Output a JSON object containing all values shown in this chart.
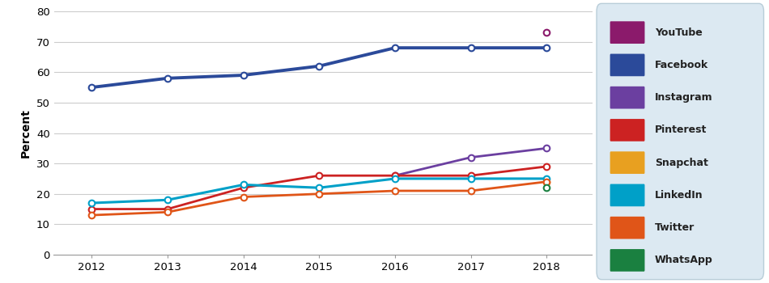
{
  "years": [
    2012,
    2013,
    2014,
    2015,
    2016,
    2017,
    2018
  ],
  "full_series": {
    "YouTube": [
      null,
      null,
      null,
      null,
      null,
      null,
      73
    ],
    "Facebook": [
      55,
      58,
      59,
      62,
      68,
      68,
      68
    ],
    "Instagram": [
      null,
      null,
      null,
      null,
      26,
      32,
      35
    ],
    "Pinterest": [
      15,
      15,
      22,
      26,
      26,
      26,
      29
    ],
    "Snapchat": [
      null,
      null,
      null,
      null,
      null,
      null,
      24
    ],
    "LinkedIn": [
      17,
      18,
      23,
      22,
      25,
      25,
      25
    ],
    "Twitter": [
      13,
      14,
      19,
      20,
      21,
      21,
      24
    ],
    "WhatsApp": [
      null,
      null,
      null,
      null,
      null,
      null,
      22
    ]
  },
  "line_colors": {
    "YouTube": "#8B1A6B",
    "Facebook": "#2B4A9A",
    "Instagram": "#6B3FA0",
    "Pinterest": "#CC2222",
    "Snapchat": "#E8A020",
    "LinkedIn": "#00A0C8",
    "Twitter": "#E05518",
    "WhatsApp": "#1A8040"
  },
  "line_widths": {
    "YouTube": 1.8,
    "Facebook": 2.8,
    "Instagram": 2.0,
    "Pinterest": 2.0,
    "Snapchat": 2.0,
    "LinkedIn": 2.2,
    "Twitter": 2.0,
    "WhatsApp": 2.0
  },
  "ylabel": "Percent",
  "ylim": [
    0,
    80
  ],
  "yticks": [
    0,
    10,
    20,
    30,
    40,
    50,
    60,
    70,
    80
  ],
  "xlim_lo": 2011.5,
  "xlim_hi": 2018.6,
  "xticks": [
    2012,
    2013,
    2014,
    2015,
    2016,
    2017,
    2018
  ],
  "legend_order": [
    "YouTube",
    "Facebook",
    "Instagram",
    "Pinterest",
    "Snapchat",
    "LinkedIn",
    "Twitter",
    "WhatsApp"
  ],
  "background_color": "#FFFFFF",
  "legend_bg": "#DCE9F2",
  "legend_border": "#B8CDD8",
  "grid_color": "#CCCCCC",
  "marker_size": 5.5,
  "marker_edge_width": 1.5
}
